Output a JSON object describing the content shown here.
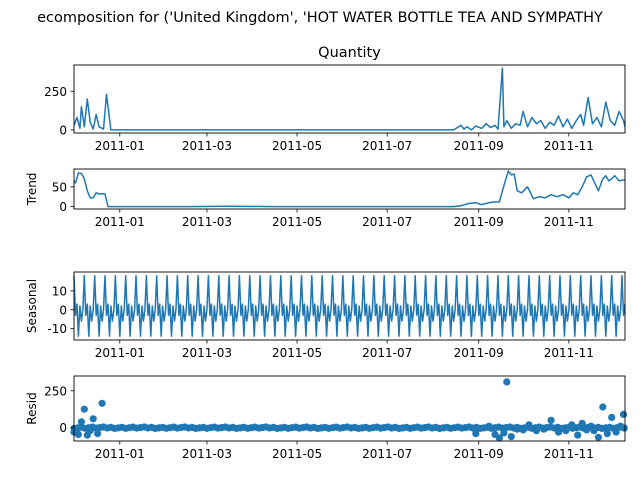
{
  "suptitle": "ecomposition for ('United Kingdom', 'HOT WATER BOTTLE TEA AND SYMPATHY",
  "colors": {
    "line": "#1f77b4",
    "axis": "#000000",
    "background": "#ffffff"
  },
  "chart_data": [
    {
      "type": "line",
      "title": "Quantity",
      "ylabel": "",
      "ylim": [
        -20,
        420
      ],
      "yticks": [
        0,
        250
      ],
      "xlim": [
        "2010-12-01",
        "2011-12-09"
      ],
      "xticks": [
        "2011-01",
        "2011-03",
        "2011-05",
        "2011-07",
        "2011-09",
        "2011-11"
      ],
      "grid": false,
      "series": [
        {
          "x": [
            "2010-12-01",
            "2010-12-03",
            "2010-12-05",
            "2010-12-06",
            "2010-12-08",
            "2010-12-10",
            "2010-12-12",
            "2010-12-14",
            "2010-12-16",
            "2010-12-18",
            "2010-12-21",
            "2010-12-23",
            "2010-12-26",
            "2011-01-15",
            "2011-02-15",
            "2011-03-15",
            "2011-04-15",
            "2011-05-15",
            "2011-06-15",
            "2011-07-15",
            "2011-08-15",
            "2011-08-20",
            "2011-08-22",
            "2011-08-24",
            "2011-08-27",
            "2011-08-30",
            "2011-09-03",
            "2011-09-06",
            "2011-09-09",
            "2011-09-12",
            "2011-09-14",
            "2011-09-17",
            "2011-09-18",
            "2011-09-20",
            "2011-09-23",
            "2011-09-26",
            "2011-09-29",
            "2011-10-01",
            "2011-10-04",
            "2011-10-07",
            "2011-10-10",
            "2011-10-13",
            "2011-10-16",
            "2011-10-19",
            "2011-10-22",
            "2011-10-25",
            "2011-10-28",
            "2011-10-31",
            "2011-11-03",
            "2011-11-06",
            "2011-11-09",
            "2011-11-11",
            "2011-11-14",
            "2011-11-17",
            "2011-11-20",
            "2011-11-23",
            "2011-11-26",
            "2011-11-29",
            "2011-12-02",
            "2011-12-05",
            "2011-12-08",
            "2011-12-09"
          ],
          "y": [
            30,
            80,
            10,
            150,
            20,
            200,
            50,
            5,
            100,
            20,
            5,
            230,
            0,
            0,
            0,
            0,
            0,
            0,
            0,
            0,
            0,
            30,
            5,
            20,
            0,
            25,
            10,
            40,
            15,
            30,
            5,
            400,
            20,
            60,
            10,
            40,
            30,
            120,
            20,
            80,
            40,
            60,
            10,
            50,
            30,
            90,
            20,
            70,
            10,
            60,
            100,
            30,
            210,
            40,
            80,
            20,
            180,
            60,
            30,
            120,
            60,
            20
          ]
        }
      ]
    },
    {
      "type": "line",
      "title": "",
      "ylabel": "Trend",
      "ylim": [
        -6,
        95
      ],
      "yticks": [
        0,
        50
      ],
      "xlim": [
        "2010-12-01",
        "2011-12-09"
      ],
      "xticks": [
        "2011-01",
        "2011-03",
        "2011-05",
        "2011-07",
        "2011-09",
        "2011-11"
      ],
      "grid": false,
      "series": [
        {
          "x": [
            "2010-12-01",
            "2010-12-02",
            "2010-12-04",
            "2010-12-06",
            "2010-12-08",
            "2010-12-10",
            "2010-12-12",
            "2010-12-14",
            "2010-12-16",
            "2010-12-18",
            "2010-12-20",
            "2010-12-22",
            "2010-12-24",
            "2010-12-26",
            "2011-01-15",
            "2011-02-15",
            "2011-03-15",
            "2011-04-15",
            "2011-05-15",
            "2011-06-15",
            "2011-07-15",
            "2011-08-15",
            "2011-08-20",
            "2011-08-25",
            "2011-08-30",
            "2011-09-03",
            "2011-09-08",
            "2011-09-12",
            "2011-09-15",
            "2011-09-17",
            "2011-09-19",
            "2011-09-21",
            "2011-09-23",
            "2011-09-25",
            "2011-09-27",
            "2011-09-30",
            "2011-10-04",
            "2011-10-08",
            "2011-10-12",
            "2011-10-16",
            "2011-10-20",
            "2011-10-24",
            "2011-10-28",
            "2011-11-01",
            "2011-11-04",
            "2011-11-07",
            "2011-11-10",
            "2011-11-13",
            "2011-11-16",
            "2011-11-19",
            "2011-11-21",
            "2011-11-24",
            "2011-11-26",
            "2011-11-28",
            "2011-11-30",
            "2011-12-02",
            "2011-12-05",
            "2011-12-09"
          ],
          "y": [
            65,
            60,
            85,
            84,
            70,
            40,
            22,
            22,
            35,
            32,
            33,
            32,
            0,
            0,
            0,
            0,
            1,
            0,
            0,
            0,
            0,
            0,
            2,
            8,
            10,
            5,
            10,
            12,
            12,
            40,
            65,
            90,
            80,
            82,
            40,
            35,
            50,
            20,
            25,
            22,
            30,
            25,
            30,
            22,
            35,
            30,
            50,
            75,
            80,
            55,
            40,
            70,
            78,
            65,
            70,
            78,
            65,
            68
          ]
        }
      ]
    },
    {
      "type": "line",
      "title": "",
      "ylabel": "Seasonal",
      "ylim": [
        -16,
        20
      ],
      "yticks": [
        -10,
        0,
        10
      ],
      "xlim": [
        "2010-12-01",
        "2011-12-09"
      ],
      "xticks": [
        "2011-01",
        "2011-03",
        "2011-05",
        "2011-07",
        "2011-09",
        "2011-11"
      ],
      "grid": false,
      "series": [
        {
          "period_days": 7,
          "pattern": [
            18,
            -3,
            3,
            -14,
            2,
            -6,
            0
          ],
          "start": "2010-12-01",
          "end": "2011-12-09"
        }
      ]
    },
    {
      "type": "scatter",
      "title": "",
      "ylabel": "Resid",
      "ylim": [
        -90,
        350
      ],
      "yticks": [
        0,
        250
      ],
      "xlim": [
        "2010-12-01",
        "2011-12-09"
      ],
      "xticks": [
        "2011-01",
        "2011-03",
        "2011-05",
        "2011-07",
        "2011-09",
        "2011-11"
      ],
      "grid": false,
      "baseline": 0,
      "series": [
        {
          "x": [
            "2010-12-01",
            "2010-12-04",
            "2010-12-06",
            "2010-12-08",
            "2010-12-10",
            "2010-12-12",
            "2010-12-14",
            "2010-12-17",
            "2010-12-20",
            "2011-08-30",
            "2011-09-08",
            "2011-09-12",
            "2011-09-15",
            "2011-09-18",
            "2011-09-20",
            "2011-09-23",
            "2011-09-27",
            "2011-10-01",
            "2011-10-05",
            "2011-10-10",
            "2011-10-15",
            "2011-10-20",
            "2011-10-25",
            "2011-10-30",
            "2011-11-03",
            "2011-11-07",
            "2011-11-10",
            "2011-11-13",
            "2011-11-16",
            "2011-11-18",
            "2011-11-21",
            "2011-11-24",
            "2011-11-27",
            "2011-11-30",
            "2011-12-03",
            "2011-12-06",
            "2011-12-08"
          ],
          "y": [
            -30,
            -45,
            40,
            125,
            -50,
            -20,
            60,
            -40,
            165,
            -40,
            10,
            -45,
            -70,
            -35,
            310,
            -60,
            -10,
            -15,
            20,
            -20,
            -10,
            50,
            -30,
            -20,
            20,
            -50,
            30,
            -15,
            10,
            -20,
            -65,
            140,
            -40,
            70,
            -30,
            10,
            90
          ]
        }
      ]
    }
  ]
}
